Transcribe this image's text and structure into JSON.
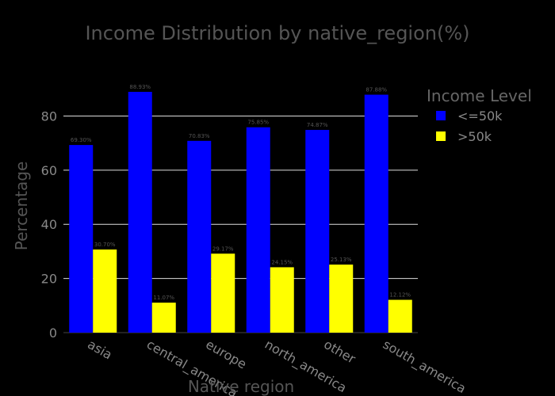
{
  "chart_data": {
    "type": "bar",
    "title": "Income Distribution by native_region(%)",
    "xlabel": "Native region",
    "ylabel": "Percentage",
    "categories": [
      "asia",
      "central_america",
      "europe",
      "north_america",
      "other",
      "south_america"
    ],
    "series": [
      {
        "name": "<=50k",
        "color": "#0000ff",
        "values": [
          69.3,
          88.93,
          70.83,
          75.85,
          74.87,
          87.88
        ],
        "labels": [
          "69.30%",
          "88.93%",
          "70.83%",
          "75.85%",
          "74.87%",
          "87.88%"
        ]
      },
      {
        "name": ">50k",
        "color": "#ffff00",
        "values": [
          30.7,
          11.07,
          29.17,
          24.15,
          25.13,
          12.12
        ],
        "labels": [
          "30.70%",
          "11.07%",
          "29.17%",
          "24.15%",
          "25.13%",
          "12.12%"
        ]
      }
    ],
    "yticks": [
      0,
      20,
      40,
      60,
      80
    ],
    "ylim": [
      0,
      93.6
    ],
    "legend_title": "Income Level",
    "legend_position": "top-right",
    "grid": true
  }
}
